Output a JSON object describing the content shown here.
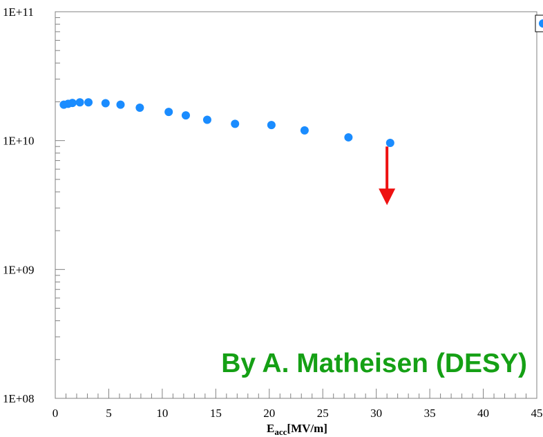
{
  "chart_data": {
    "type": "scatter",
    "title": "",
    "xlabel_main": "E",
    "xlabel_sub": "acc",
    "xlabel_unit": "[MV/m]",
    "ylabel": "",
    "yscale": "log",
    "xlim": [
      0,
      45
    ],
    "ylim": [
      100000000.0,
      100000000000.0
    ],
    "x_ticks": [
      "0",
      "5",
      "10",
      "15",
      "20",
      "25",
      "30",
      "35",
      "40",
      "45"
    ],
    "y_ticks": [
      "1E+08",
      "1E+09",
      "1E+10",
      "1E+11"
    ],
    "series": [
      {
        "color": "#1a8cff",
        "x": [
          0.8,
          1.2,
          1.6,
          2.3,
          3.1,
          4.7,
          6.1,
          7.9,
          10.6,
          12.2,
          14.2,
          16.8,
          20.2,
          23.3,
          27.4,
          31.3
        ],
        "y": [
          19000000000.0,
          19300000000.0,
          19600000000.0,
          19800000000.0,
          19800000000.0,
          19500000000.0,
          19000000000.0,
          18000000000.0,
          16700000000.0,
          15700000000.0,
          14500000000.0,
          13500000000.0,
          13200000000.0,
          12000000000.0,
          10600000000.0,
          9600000000.0
        ]
      }
    ],
    "annotation_arrow": {
      "x": 31.0,
      "y_from": 9000000000.0,
      "y_to": 3400000000.0,
      "color": "#ee1111"
    },
    "credit_text": "By A. Matheisen (DESY)",
    "credit_color": "#15a015"
  }
}
